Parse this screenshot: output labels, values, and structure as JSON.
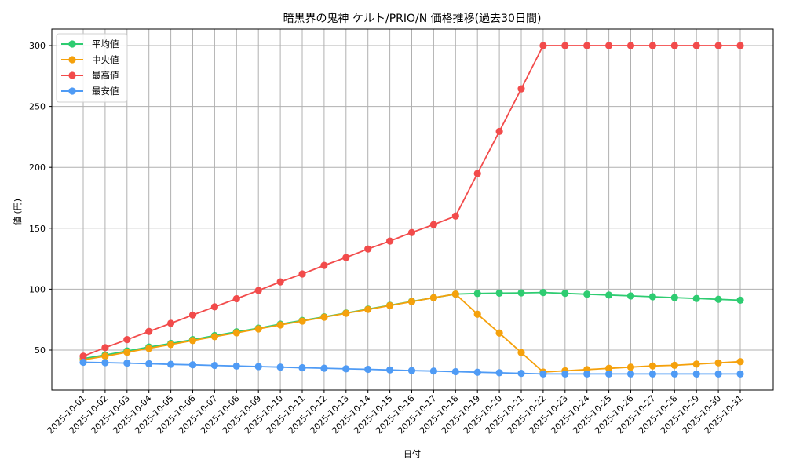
{
  "chart_data": {
    "type": "line",
    "title": "暗黒界の鬼神 ケルト/PRIO/N 価格推移(過去30日間)",
    "xlabel": "日付",
    "ylabel": "値 (円)",
    "ylim": [
      17,
      313
    ],
    "yticks": [
      50,
      100,
      150,
      200,
      250,
      300
    ],
    "grid": true,
    "legend_position": "upper left",
    "x": [
      "2025-10-01",
      "2025-10-02",
      "2025-10-03",
      "2025-10-04",
      "2025-10-05",
      "2025-10-06",
      "2025-10-07",
      "2025-10-08",
      "2025-10-09",
      "2025-10-10",
      "2025-10-11",
      "2025-10-12",
      "2025-10-13",
      "2025-10-14",
      "2025-10-15",
      "2025-10-16",
      "2025-10-17",
      "2025-10-18",
      "2025-10-19",
      "2025-10-20",
      "2025-10-21",
      "2025-10-22",
      "2025-10-23",
      "2025-10-24",
      "2025-10-25",
      "2025-10-26",
      "2025-10-27",
      "2025-10-28",
      "2025-10-29",
      "2025-10-30",
      "2025-10-31"
    ],
    "series": [
      {
        "name": "平均値",
        "color": "#2ecc71",
        "values": [
          43,
          46,
          49.3,
          52.5,
          55.5,
          58.6,
          61.9,
          65,
          68,
          71.3,
          74.3,
          77.3,
          80.5,
          83.7,
          86.8,
          90,
          93,
          96,
          96.5,
          96.8,
          97,
          97.3,
          96.6,
          95.9,
          95.2,
          94.5,
          93.8,
          93.1,
          92.4,
          91.7,
          91
        ]
      },
      {
        "name": "中央値",
        "color": "#f5a10c",
        "values": [
          42,
          45,
          48.2,
          51.4,
          54.6,
          57.8,
          61,
          64.2,
          67.4,
          70.6,
          73.8,
          77,
          80.2,
          83.4,
          86.6,
          89.8,
          93,
          96,
          79.5,
          64,
          48,
          32,
          33,
          34,
          35,
          36,
          37,
          37.5,
          38.5,
          39.5,
          40.5
        ]
      },
      {
        "name": "最高値",
        "color": "#f24b4b",
        "values": [
          45,
          52,
          58.6,
          65.3,
          72,
          78.8,
          85.5,
          92.2,
          99,
          106,
          112.5,
          119.5,
          126,
          133,
          139.5,
          146.5,
          153,
          160,
          195,
          229.5,
          264.5,
          300,
          300,
          300,
          300,
          300,
          300,
          300,
          300,
          300,
          300
        ]
      },
      {
        "name": "最安値",
        "color": "#4f9bf5",
        "values": [
          40,
          39.7,
          39.3,
          38.8,
          38.3,
          37.9,
          37.4,
          36.9,
          36.5,
          36,
          35.5,
          35.1,
          34.6,
          34.2,
          33.7,
          33.2,
          32.8,
          32.3,
          31.8,
          31.4,
          30.9,
          30.4,
          30.4,
          30.4,
          30.4,
          30.4,
          30.4,
          30.4,
          30.4,
          30.4,
          30.4
        ]
      }
    ]
  }
}
